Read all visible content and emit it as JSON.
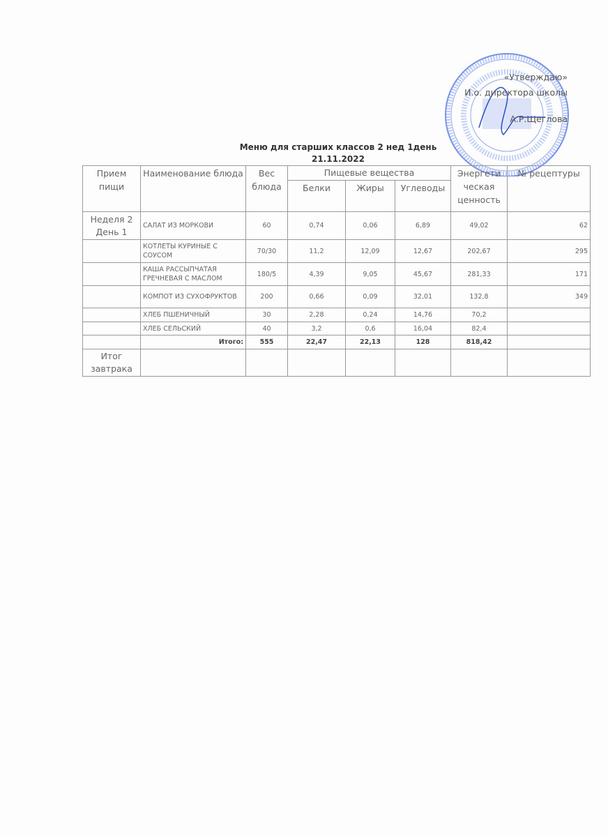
{
  "approval": {
    "line1": "«Утверждаю»",
    "line2": "И.о. директора школы",
    "line3": "А.Р.Щеглова"
  },
  "stamp": {
    "text": "МБОУ ... СРЕДНЯЯ ШКОЛА ... РАЙОНА РТ",
    "color": "#3b63d6"
  },
  "title": {
    "line1": "Меню для старших классов  2 нед  1день",
    "line2": "21.11.2022"
  },
  "table": {
    "headers": {
      "meal": "Прием пищи",
      "dish": "Наименование блюда",
      "weight": "Вес блюда",
      "nutrients": "Пищевые вещества",
      "protein": "Белки",
      "fat": "Жиры",
      "carbs": "Углеводы",
      "energy": "Энергети ческая ценность",
      "recipe": "№ рецептуры"
    },
    "meal_label": "Неделя 2 День 1",
    "rows": [
      {
        "dish": "САЛАТ ИЗ МОРКОВИ",
        "weight": "60",
        "protein": "0,74",
        "fat": "0,06",
        "carbs": "6,89",
        "energy": "49,02",
        "recipe": "62"
      },
      {
        "dish": "КОТЛЕТЫ КУРИНЫЕ С СОУСОМ",
        "weight": "70/30",
        "protein": "11,2",
        "fat": "12,09",
        "carbs": "12,67",
        "energy": "202,67",
        "recipe": "295"
      },
      {
        "dish": "КАША РАССЫПЧАТАЯ ГРЕЧНЕВАЯ С МАСЛОМ",
        "weight": "180/5",
        "protein": "4,39",
        "fat": "9,05",
        "carbs": "45,67",
        "energy": "281,33",
        "recipe": "171"
      },
      {
        "dish": "КОМПОТ ИЗ СУХОФРУКТОВ",
        "weight": "200",
        "protein": "0,66",
        "fat": "0,09",
        "carbs": "32,01",
        "energy": "132,8",
        "recipe": "349"
      },
      {
        "dish": "ХЛЕБ ПШЕНИЧНЫЙ",
        "weight": "30",
        "protein": "2,28",
        "fat": "0,24",
        "carbs": "14,76",
        "energy": "70,2",
        "recipe": ""
      },
      {
        "dish": "ХЛЕБ СЕЛЬСКИЙ",
        "weight": "40",
        "protein": "3,2",
        "fat": "0,6",
        "carbs": "16,04",
        "energy": "82,4",
        "recipe": ""
      }
    ],
    "total": {
      "label": "Итого:",
      "weight": "555",
      "protein": "22,47",
      "fat": "22,13",
      "carbs": "128",
      "energy": "818,42"
    },
    "footer_label": "Итог завтрака"
  }
}
